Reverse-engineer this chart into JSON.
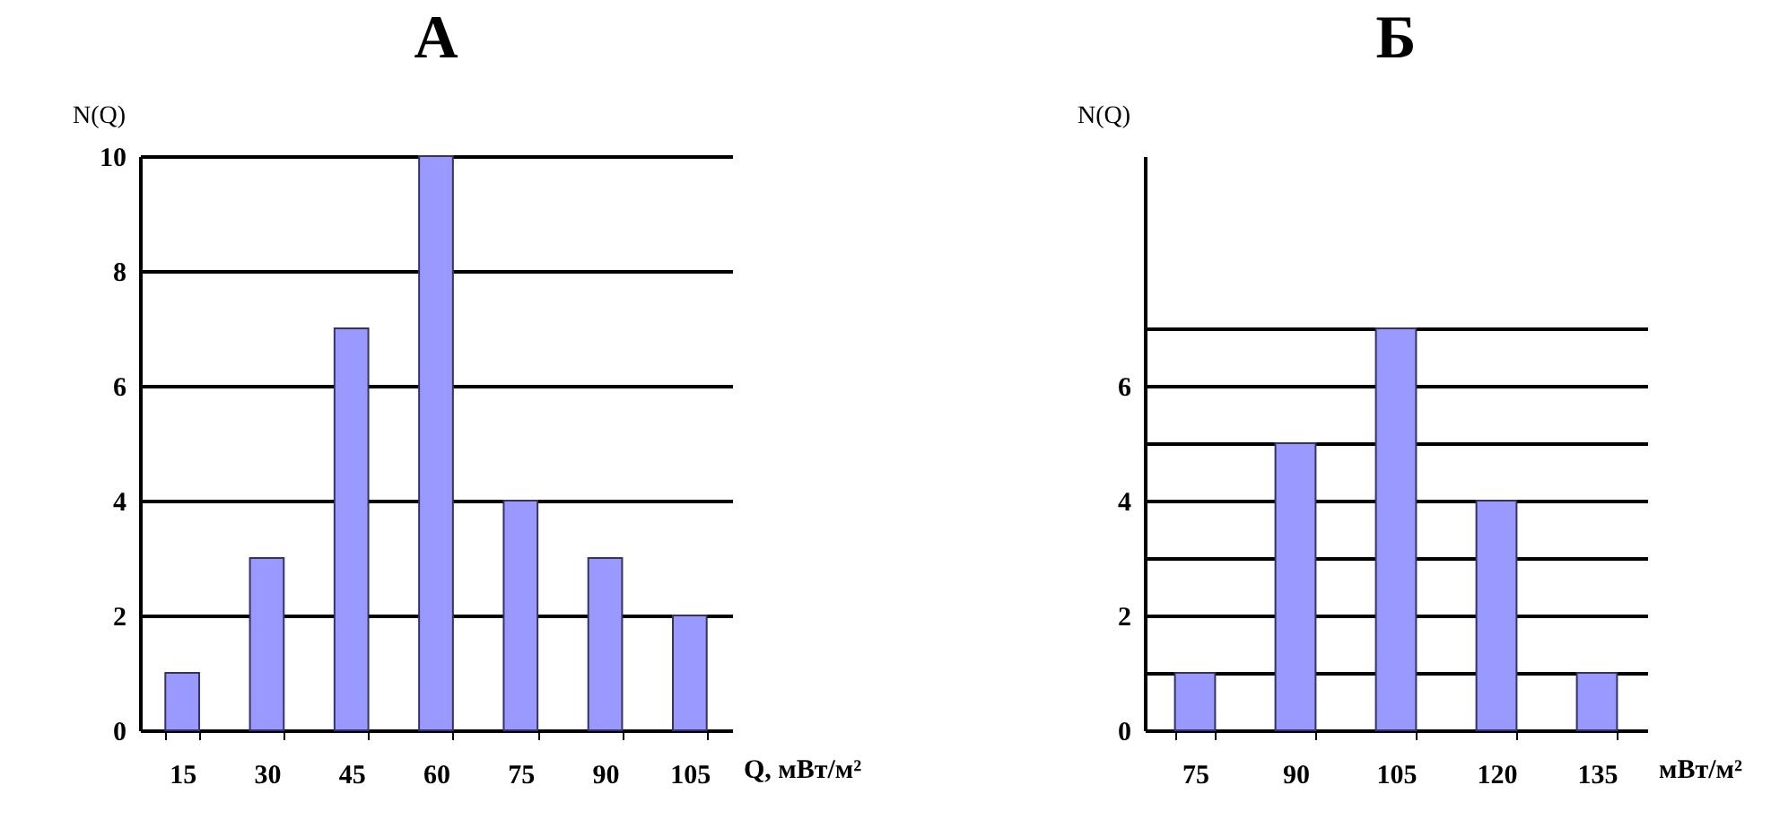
{
  "chart_data": [
    {
      "type": "bar",
      "title": "А",
      "ylabel": "N(Q)",
      "xlabel": "Q, мВт/м²",
      "categories": [
        "15",
        "30",
        "45",
        "60",
        "75",
        "90",
        "105"
      ],
      "series": [
        {
          "color": "#9999ff",
          "values": [
            1,
            3,
            7,
            10,
            4,
            3,
            2
          ]
        }
      ],
      "ylim": [
        0,
        10
      ],
      "yticks": [
        0,
        2,
        4,
        6,
        8,
        10
      ],
      "grid": "y",
      "legend": false
    },
    {
      "type": "bar",
      "title": "Б",
      "ylabel": "N(Q)",
      "xlabel": "мВт/м²",
      "categories": [
        "75",
        "90",
        "105",
        "120",
        "135"
      ],
      "series": [
        {
          "color": "#9999ff",
          "values": [
            1,
            5,
            7,
            4,
            1
          ]
        }
      ],
      "ylim": [
        0,
        10
      ],
      "yticks": [
        0,
        {
          "value": 1,
          "label": null
        },
        2,
        {
          "value": 3,
          "label": null
        },
        4,
        {
          "value": 5,
          "label": null
        },
        6,
        {
          "value": 7,
          "label": null
        }
      ],
      "grid": "y",
      "legend": false
    }
  ]
}
